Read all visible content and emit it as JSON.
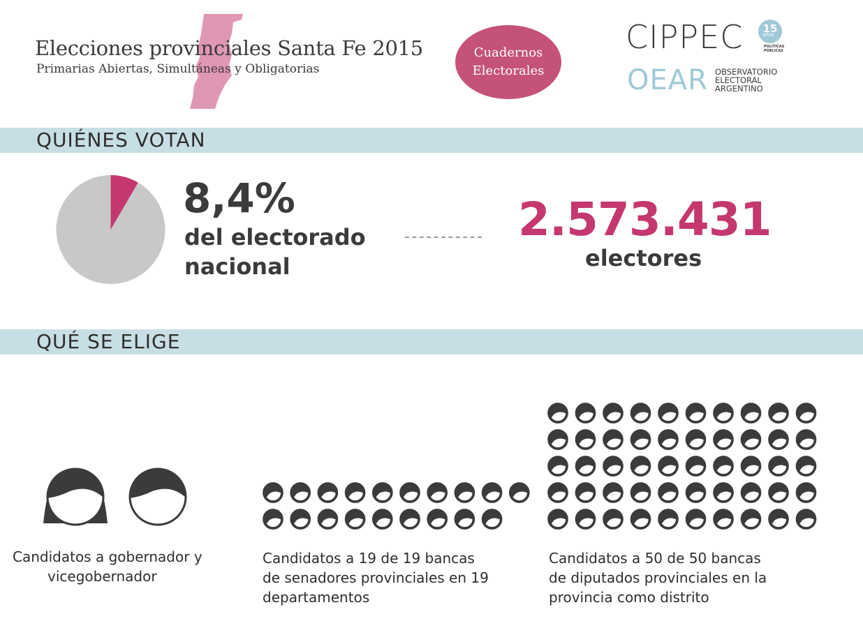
{
  "header": {
    "title": "Elecciones provinciales Santa Fe 2015",
    "subtitle": "Primarias Abiertas, Simultáneas y Obligatorias",
    "badge_line1": "Cuadernos",
    "badge_line2": "Electorales"
  },
  "logos": {
    "cippec": "CIPPEC",
    "cippec_years": "15",
    "cippec_years_label": "años",
    "cippec_tagline_1": "POLÍTICAS",
    "cippec_tagline_2": "PÚBLICAS",
    "oear": "OEAR",
    "oear_line1": "OBSERVATORIO",
    "oear_line2": "ELECTORAL",
    "oear_line3": "ARGENTINO"
  },
  "colors": {
    "accent": "#c4386f",
    "band": "#c8dee5",
    "pie_rest": "#c8c8c8",
    "dark": "#3d3a3b"
  },
  "quienes_votan": {
    "heading": "QUIÉNES VOTAN",
    "share_pct": 8.4,
    "share_text": "8,4%",
    "share_label_1": "del electorado",
    "share_label_2": "nacional",
    "electors": "2.573.431",
    "electors_label": "electores"
  },
  "que_se_elige": {
    "heading": "QUÉ SE ELIGE",
    "groups": [
      {
        "count": 2,
        "icon": "person-head-icon",
        "caption": [
          "Candidatos a gobernador y",
          "vicegobernador"
        ]
      },
      {
        "count": 19,
        "icon": "person-head-icon",
        "caption": [
          "Candidatos a 19 de 19 bancas",
          "de senadores provinciales en 19",
          "departamentos"
        ]
      },
      {
        "count": 50,
        "icon": "person-head-icon",
        "caption": [
          "Candidatos a 50 de 50 bancas",
          "de diputados provinciales en la",
          "provincia como distrito"
        ]
      }
    ]
  }
}
